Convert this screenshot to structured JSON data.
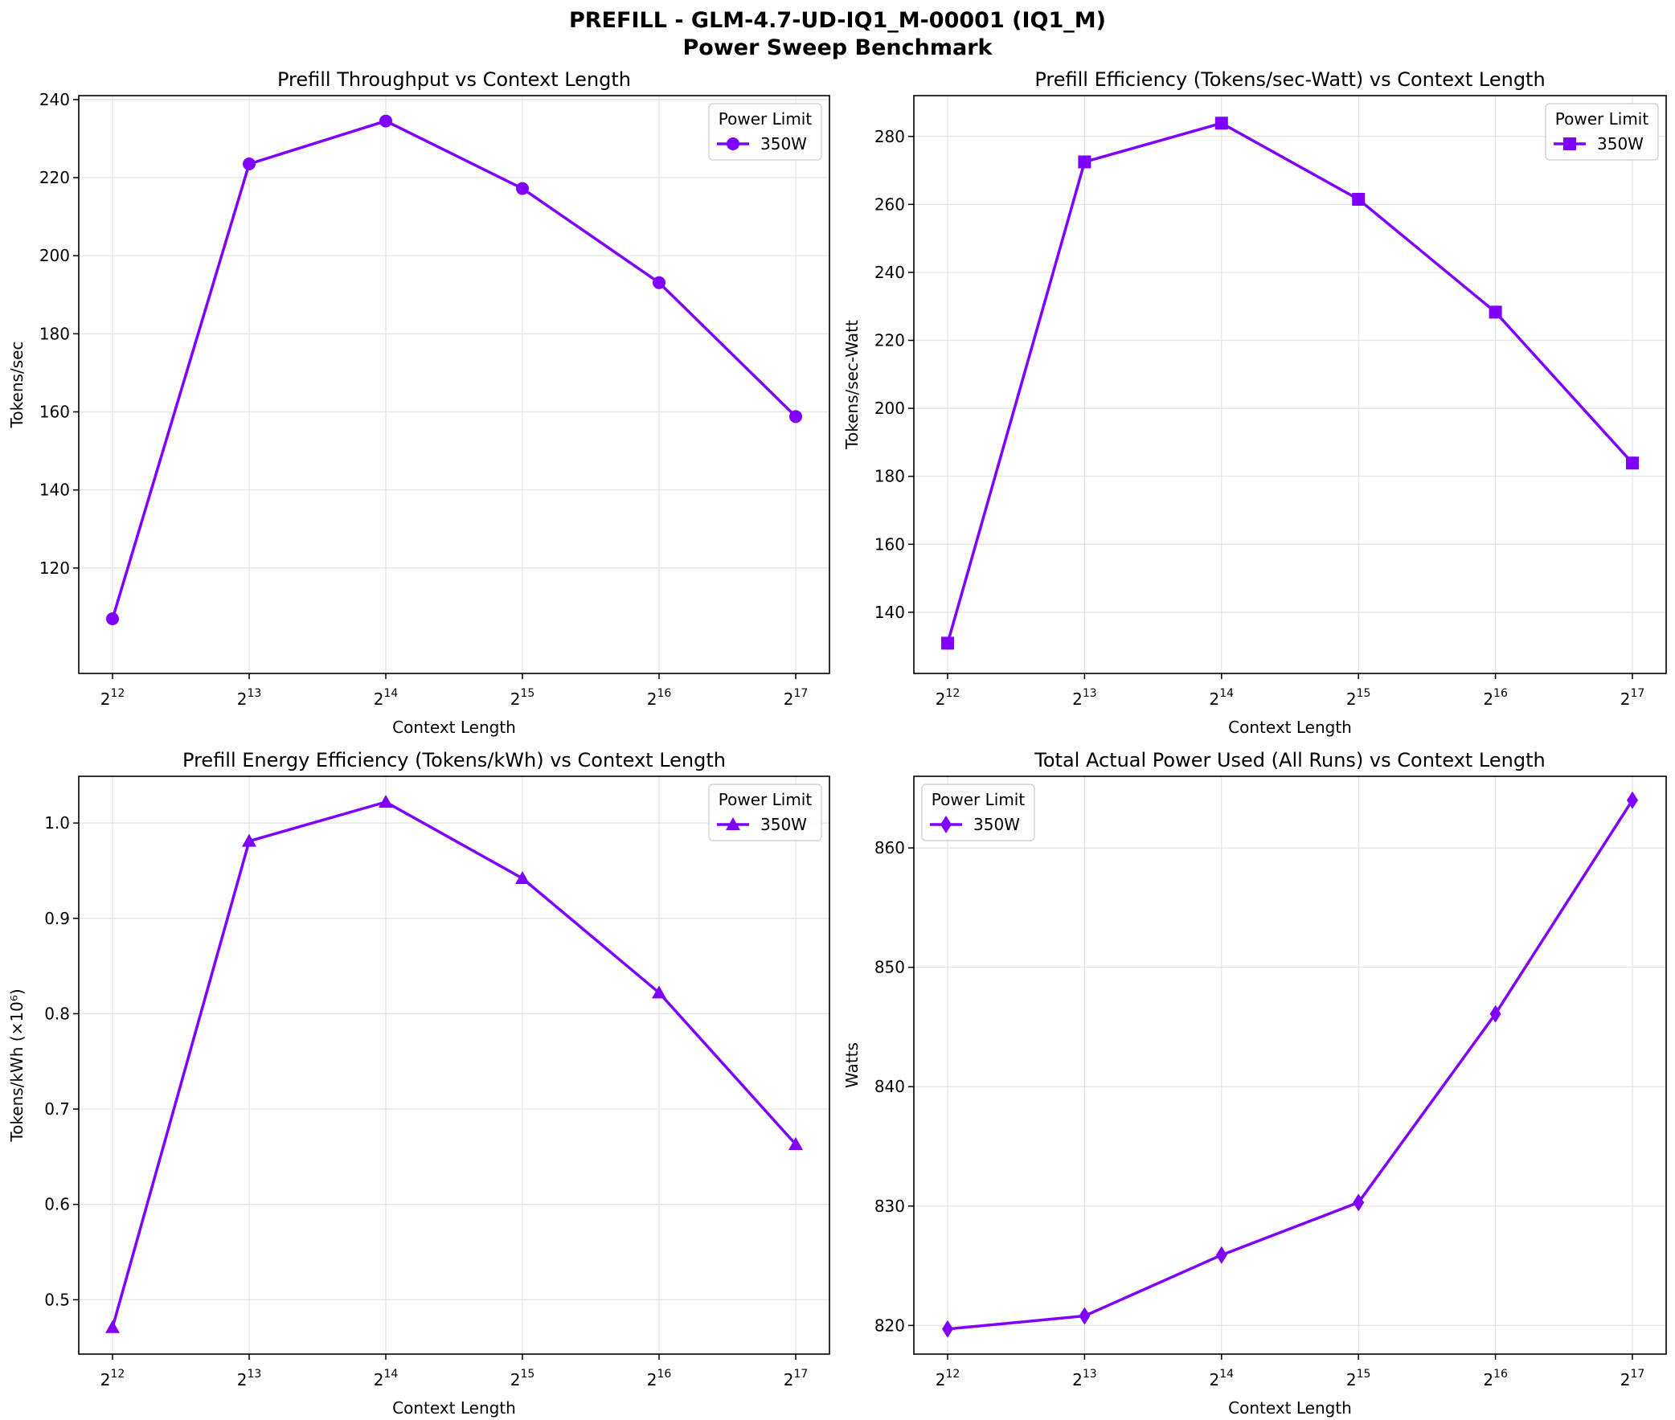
{
  "figure": {
    "title": "PREFILL - GLM-4.7-UD-IQ1_M-00001 (IQ1_M)",
    "subtitle": "Power Sweep Benchmark"
  },
  "colors": {
    "series": "#8000ff",
    "grid": "#e3e3e3",
    "axes": "#000000"
  },
  "chart_data": [
    {
      "type": "line",
      "title": "Prefill Throughput vs Context Length",
      "xlabel": "Context Length",
      "ylabel": "Tokens/sec",
      "x_scale": "log2",
      "x": [
        4096,
        8192,
        16384,
        32768,
        65536,
        131072
      ],
      "x_tick_labels": [
        "2^12",
        "2^13",
        "2^14",
        "2^15",
        "2^16",
        "2^17"
      ],
      "ylim": [
        93,
        241
      ],
      "yticks": [
        120,
        140,
        160,
        180,
        200,
        220,
        240
      ],
      "grid": true,
      "legend": {
        "title": "Power Limit",
        "placement": "top-right"
      },
      "series": [
        {
          "name": "350W",
          "marker": "circle",
          "values": [
            107.0,
            223.5,
            234.5,
            217.2,
            193.1,
            158.8
          ]
        }
      ]
    },
    {
      "type": "line",
      "title": "Prefill Efficiency (Tokens/sec-Watt) vs Context Length",
      "xlabel": "Context Length",
      "ylabel": "Tokens/sec-Watt",
      "x_scale": "log2",
      "x": [
        4096,
        8192,
        16384,
        32768,
        65536,
        131072
      ],
      "x_tick_labels": [
        "2^12",
        "2^13",
        "2^14",
        "2^15",
        "2^16",
        "2^17"
      ],
      "ylim": [
        122,
        292
      ],
      "yticks": [
        140,
        160,
        180,
        200,
        220,
        240,
        260,
        280
      ],
      "grid": true,
      "legend": {
        "title": "Power Limit",
        "placement": "top-right"
      },
      "series": [
        {
          "name": "350W",
          "marker": "square",
          "values": [
            130.9,
            272.5,
            283.9,
            261.5,
            228.3,
            183.9
          ]
        }
      ]
    },
    {
      "type": "line",
      "title": "Prefill Energy Efficiency (Tokens/kWh) vs Context Length",
      "xlabel": "Context Length",
      "ylabel": "Tokens/kWh (×10⁶)",
      "x_scale": "log2",
      "x": [
        4096,
        8192,
        16384,
        32768,
        65536,
        131072
      ],
      "x_tick_labels": [
        "2^12",
        "2^13",
        "2^14",
        "2^15",
        "2^16",
        "2^17"
      ],
      "ylim": [
        0.443,
        1.049
      ],
      "yticks": [
        0.5,
        0.6,
        0.7,
        0.8,
        0.9,
        1.0
      ],
      "ytick_labels": [
        "0.5",
        "0.6",
        "0.7",
        "0.8",
        "0.9",
        "1.0"
      ],
      "grid": true,
      "legend": {
        "title": "Power Limit",
        "placement": "top-right"
      },
      "series": [
        {
          "name": "350W",
          "marker": "triangle",
          "values": [
            0.471,
            0.981,
            1.022,
            0.942,
            0.822,
            0.663
          ]
        }
      ]
    },
    {
      "type": "line",
      "title": "Total Actual Power Used (All Runs) vs Context Length",
      "xlabel": "Context Length",
      "ylabel": "Watts",
      "x_scale": "log2",
      "x": [
        4096,
        8192,
        16384,
        32768,
        65536,
        131072
      ],
      "x_tick_labels": [
        "2^12",
        "2^13",
        "2^14",
        "2^15",
        "2^16",
        "2^17"
      ],
      "ylim": [
        817.6,
        866.0
      ],
      "yticks": [
        820,
        830,
        840,
        850,
        860
      ],
      "grid": true,
      "legend": {
        "title": "Power Limit",
        "placement": "top-left"
      },
      "series": [
        {
          "name": "350W",
          "marker": "diamond",
          "values": [
            819.7,
            820.8,
            825.9,
            830.3,
            846.1,
            864.0
          ]
        }
      ]
    }
  ]
}
